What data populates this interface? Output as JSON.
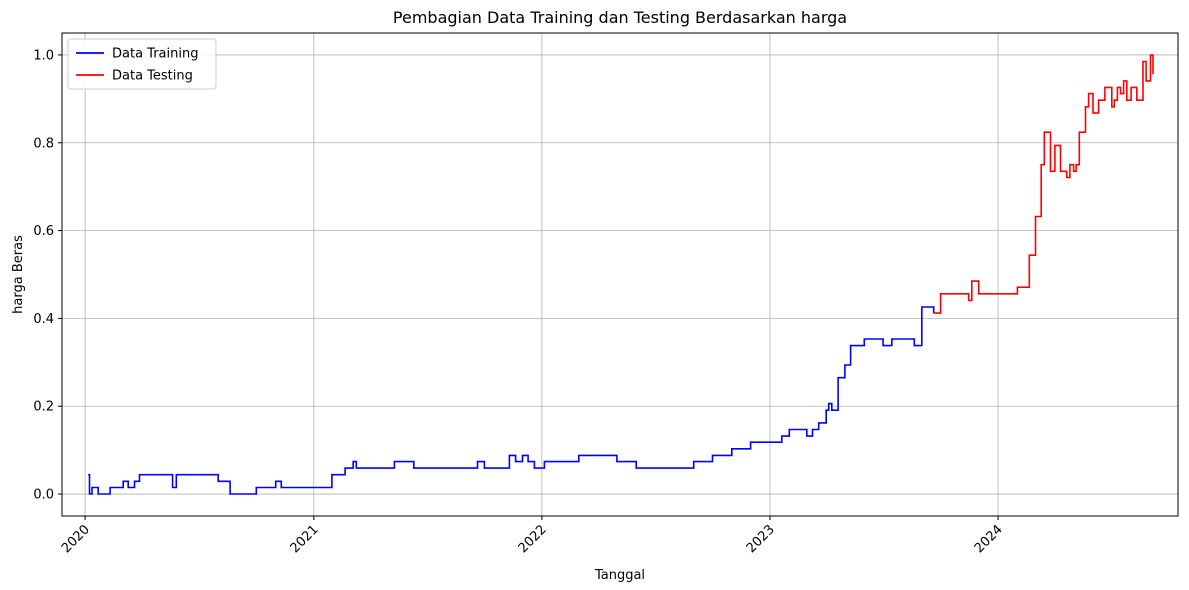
{
  "chart_data": {
    "type": "line",
    "title": "Pembagian Data Training dan Testing Berdasarkan harga",
    "xlabel": "Tanggal",
    "ylabel": "harga Beras",
    "x_ticks": [
      "2020",
      "2021",
      "2022",
      "2023",
      "2024"
    ],
    "y_ticks": [
      "0.0",
      "0.2",
      "0.4",
      "0.6",
      "0.8",
      "1.0"
    ],
    "xlim": [
      "2019-11-25",
      "2024-10-15"
    ],
    "ylim": [
      -0.05,
      1.05
    ],
    "grid": true,
    "legend_position": "upper-left",
    "series": [
      {
        "name": "Data Training",
        "color": "#0000ff",
        "x": [
          "2020-01-06",
          "2020-01-08",
          "2020-01-12",
          "2020-01-15",
          "2020-01-22",
          "2020-02-10",
          "2020-03-02",
          "2020-03-10",
          "2020-03-20",
          "2020-03-28",
          "2020-04-10",
          "2020-05-20",
          "2020-05-26",
          "2020-08-01",
          "2020-08-20",
          "2020-10-01",
          "2020-11-01",
          "2020-11-10",
          "2021-01-30",
          "2021-02-05",
          "2021-02-20",
          "2021-03-05",
          "2021-03-10",
          "2021-03-20",
          "2021-05-10",
          "2021-06-10",
          "2021-09-20",
          "2021-10-01",
          "2021-11-10",
          "2021-11-20",
          "2021-12-01",
          "2021-12-10",
          "2021-12-20",
          "2022-01-05",
          "2022-01-10",
          "2022-03-01",
          "2022-04-01",
          "2022-05-01",
          "2022-06-01",
          "2022-09-01",
          "2022-10-01",
          "2022-11-01",
          "2022-12-01",
          "2023-01-10",
          "2023-01-20",
          "2023-02-01",
          "2023-03-01",
          "2023-03-10",
          "2023-03-20",
          "2023-04-01",
          "2023-04-05",
          "2023-04-10",
          "2023-04-20",
          "2023-05-01",
          "2023-05-10",
          "2023-06-01",
          "2023-06-15",
          "2023-07-01",
          "2023-07-15",
          "2023-08-01",
          "2023-08-20",
          "2023-09-01",
          "2023-09-05",
          "2023-09-20"
        ],
        "y": [
          0.044,
          0.0,
          0.015,
          0.015,
          0.0,
          0.015,
          0.029,
          0.015,
          0.029,
          0.044,
          0.044,
          0.015,
          0.044,
          0.029,
          0.0,
          0.015,
          0.029,
          0.015,
          0.044,
          0.044,
          0.059,
          0.074,
          0.059,
          0.059,
          0.074,
          0.059,
          0.074,
          0.059,
          0.088,
          0.074,
          0.088,
          0.074,
          0.059,
          0.074,
          0.074,
          0.088,
          0.088,
          0.074,
          0.059,
          0.074,
          0.088,
          0.103,
          0.118,
          0.118,
          0.132,
          0.147,
          0.132,
          0.147,
          0.162,
          0.191,
          0.206,
          0.191,
          0.265,
          0.294,
          0.338,
          0.353,
          0.353,
          0.338,
          0.353,
          0.353,
          0.338,
          0.426,
          0.426,
          0.412
        ]
      },
      {
        "name": "Data Testing",
        "color": "#ff0000",
        "x": [
          "2023-09-20",
          "2023-10-01",
          "2023-10-15",
          "2023-11-01",
          "2023-11-15",
          "2023-11-20",
          "2023-12-01",
          "2024-01-01",
          "2024-01-20",
          "2024-02-01",
          "2024-02-20",
          "2024-03-01",
          "2024-03-10",
          "2024-03-15",
          "2024-03-25",
          "2024-04-01",
          "2024-04-10",
          "2024-04-20",
          "2024-04-25",
          "2024-05-01",
          "2024-05-05",
          "2024-05-10",
          "2024-05-20",
          "2024-05-25",
          "2024-06-01",
          "2024-06-10",
          "2024-06-20",
          "2024-07-01",
          "2024-07-05",
          "2024-07-10",
          "2024-07-15",
          "2024-07-20",
          "2024-07-25",
          "2024-08-01",
          "2024-08-10",
          "2024-08-15",
          "2024-08-20",
          "2024-08-25",
          "2024-08-30",
          "2024-09-01",
          "2024-09-05"
        ],
        "y": [
          0.412,
          0.456,
          0.456,
          0.456,
          0.441,
          0.485,
          0.456,
          0.456,
          0.456,
          0.471,
          0.544,
          0.632,
          0.75,
          0.824,
          0.735,
          0.794,
          0.735,
          0.721,
          0.75,
          0.735,
          0.75,
          0.824,
          0.882,
          0.912,
          0.868,
          0.897,
          0.926,
          0.882,
          0.897,
          0.926,
          0.912,
          0.941,
          0.897,
          0.926,
          0.897,
          0.897,
          0.985,
          0.941,
          0.941,
          1.0,
          0.956
        ]
      }
    ]
  }
}
